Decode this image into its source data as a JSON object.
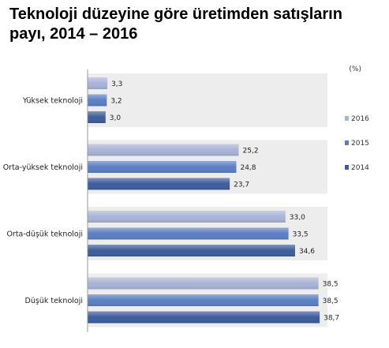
{
  "title": "Teknoloji düzeyine göre üretimden satışların payı, 2014 – 2016",
  "chart_data": {
    "type": "bar",
    "orientation": "horizontal",
    "unit_label": "(%)",
    "categories": [
      "Yüksek teknoloji",
      "Orta-yüksek teknoloji",
      "Orta-düşük teknoloji",
      "Düşük teknoloji"
    ],
    "series": [
      {
        "name": "2016",
        "color": "#A9B4D6",
        "values": [
          3.3,
          25.2,
          33.0,
          38.5
        ],
        "labels": [
          "3,3",
          "25,2",
          "33,0",
          "38,5"
        ]
      },
      {
        "name": "2015",
        "color": "#5B7FC4",
        "values": [
          3.2,
          24.8,
          33.5,
          38.5
        ],
        "labels": [
          "3,2",
          "24,8",
          "33,5",
          "38,5"
        ]
      },
      {
        "name": "2014",
        "color": "#3C5D9C",
        "values": [
          3.0,
          23.7,
          34.6,
          38.7
        ],
        "labels": [
          "3,0",
          "23,7",
          "34,6",
          "38,7"
        ]
      }
    ],
    "legend_position": "right",
    "grid": false
  }
}
